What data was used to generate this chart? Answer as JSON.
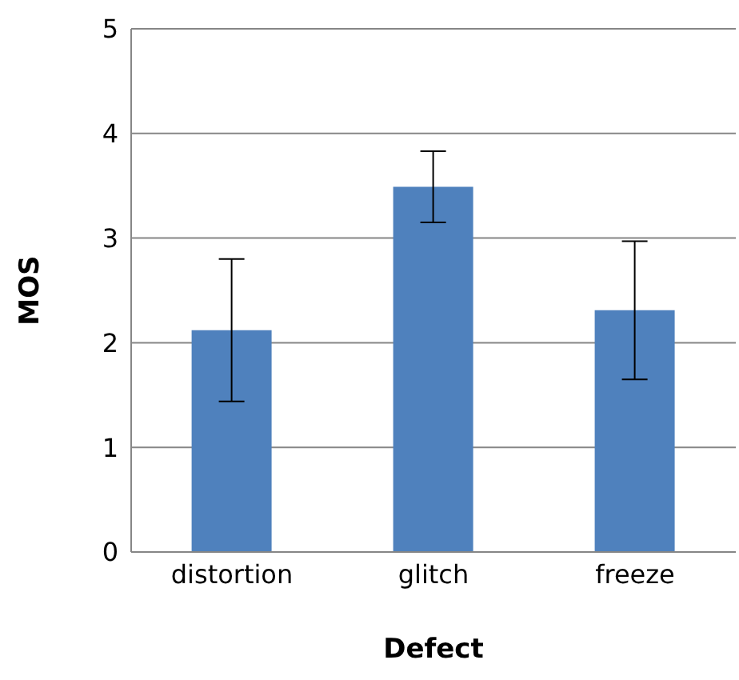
{
  "chart_data": {
    "type": "bar",
    "xlabel": "Defect",
    "ylabel": "MOS",
    "categories": [
      "distortion",
      "glitch",
      "freeze"
    ],
    "series": [
      {
        "color": "#4f81bd",
        "values": [
          2.12,
          3.49,
          2.31
        ],
        "errors": [
          0.68,
          0.34,
          0.66
        ]
      }
    ],
    "ylim": [
      0,
      5
    ],
    "yticks": [
      0,
      1,
      2,
      3,
      4,
      5
    ],
    "grid": "y"
  }
}
